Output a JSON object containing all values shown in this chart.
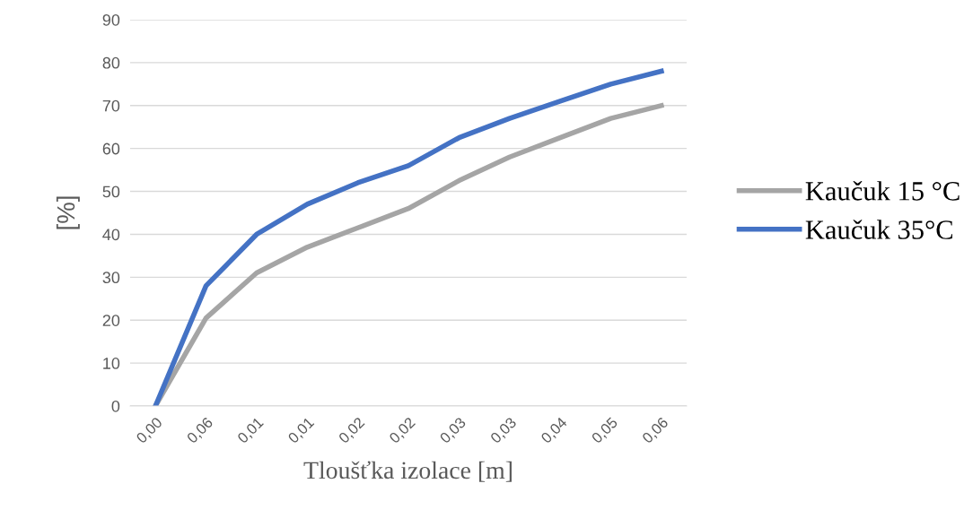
{
  "chart_data": {
    "type": "line",
    "xlabel": "Tloušťka izolace [m]",
    "ylabel": "[%]",
    "categories": [
      "0,00",
      "0,06",
      "0,01",
      "0,01",
      "0,02",
      "0,02",
      "0,03",
      "0,03",
      "0,04",
      "0,05",
      "0,06"
    ],
    "series": [
      {
        "name": "Kaučuk 15 °C",
        "color": "#a5a5a5",
        "values": [
          0,
          20.5,
          31,
          37,
          41.5,
          46,
          52.5,
          58,
          62.5,
          67,
          70
        ]
      },
      {
        "name": "Kaučuk 35°C",
        "color": "#4472c4",
        "values": [
          0,
          28,
          40,
          47,
          52,
          56,
          62.5,
          67,
          71,
          75,
          78
        ]
      }
    ],
    "ylim": [
      0,
      90
    ],
    "yticks": [
      0,
      10,
      20,
      30,
      40,
      50,
      60,
      70,
      80,
      90
    ],
    "grid": "y",
    "legend": "right",
    "marker": "none",
    "line_style": "solid"
  }
}
